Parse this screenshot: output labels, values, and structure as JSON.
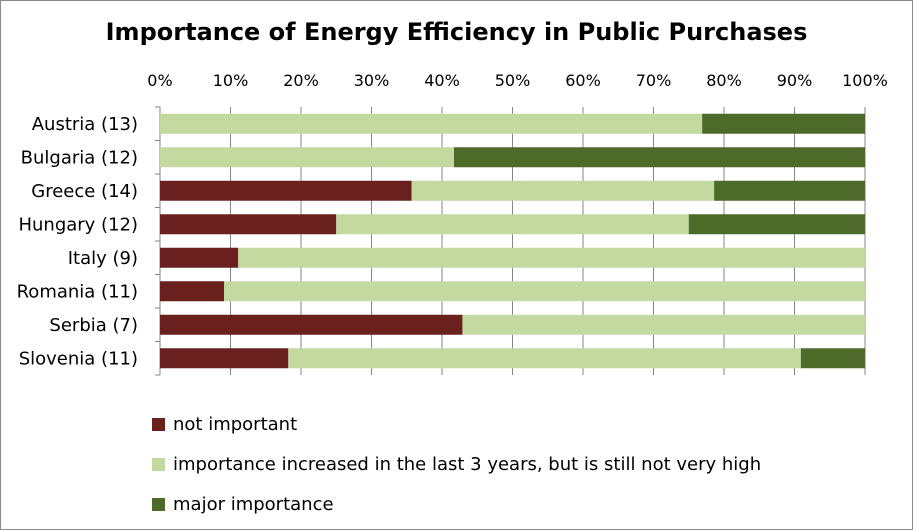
{
  "chart_data": {
    "type": "bar",
    "orientation": "horizontal",
    "stacked": true,
    "title": "Importance of Energy Efficiency in Public Purchases",
    "xlabel": "",
    "ylabel": "",
    "xlim": [
      0,
      100
    ],
    "x_ticks": [
      "0%",
      "10%",
      "20%",
      "30%",
      "40%",
      "50%",
      "60%",
      "70%",
      "80%",
      "90%",
      "100%"
    ],
    "categories": [
      "Austria (13)",
      "Bulgaria (12)",
      "Greece (14)",
      "Hungary (12)",
      "Italy (9)",
      "Romania (11)",
      "Serbia (7)",
      "Slovenia (11)"
    ],
    "series": [
      {
        "name": "not important",
        "color": "#6b2020",
        "values": [
          0,
          0,
          35.7,
          25.0,
          11.1,
          9.1,
          42.9,
          18.2
        ]
      },
      {
        "name": "importance increased in the last 3 years, but is still not very high",
        "color": "#c4d9a0",
        "values": [
          76.9,
          41.7,
          42.9,
          50.0,
          88.9,
          90.9,
          57.1,
          72.7
        ]
      },
      {
        "name": "major importance",
        "color": "#4e6a2a",
        "values": [
          23.1,
          58.3,
          21.4,
          25.0,
          0,
          0,
          0,
          9.1
        ]
      }
    ],
    "grid": true,
    "legend_position": "bottom"
  }
}
